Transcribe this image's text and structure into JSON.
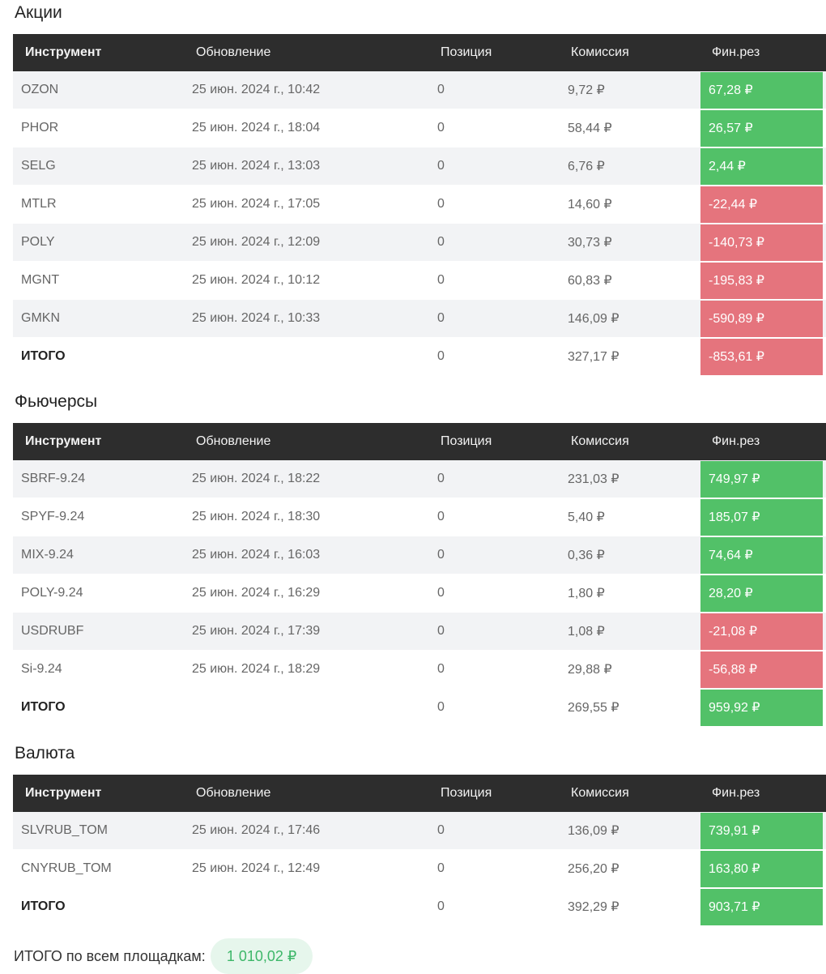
{
  "headers": [
    "Инструмент",
    "Обновление",
    "Позиция",
    "Комиссия",
    "Фин.рез"
  ],
  "colors": {
    "header_bg": "#2d2d2d",
    "profit": "#52c168",
    "loss": "#e5747d",
    "pill_bg": "#e6f6ec",
    "pill_text": "#3db769"
  },
  "sections": [
    {
      "title": "Акции",
      "rows": [
        {
          "instrument": "OZON",
          "updated": "25 июн. 2024 г., 10:42",
          "position": "0",
          "commission": "9,72 ₽",
          "result": "67,28 ₽",
          "sign": "pos"
        },
        {
          "instrument": "PHOR",
          "updated": "25 июн. 2024 г., 18:04",
          "position": "0",
          "commission": "58,44 ₽",
          "result": "26,57 ₽",
          "sign": "pos"
        },
        {
          "instrument": "SELG",
          "updated": "25 июн. 2024 г., 13:03",
          "position": "0",
          "commission": "6,76 ₽",
          "result": "2,44 ₽",
          "sign": "pos"
        },
        {
          "instrument": "MTLR",
          "updated": "25 июн. 2024 г., 17:05",
          "position": "0",
          "commission": "14,60 ₽",
          "result": "-22,44 ₽",
          "sign": "neg"
        },
        {
          "instrument": "POLY",
          "updated": "25 июн. 2024 г., 12:09",
          "position": "0",
          "commission": "30,73 ₽",
          "result": "-140,73 ₽",
          "sign": "neg"
        },
        {
          "instrument": "MGNT",
          "updated": "25 июн. 2024 г., 10:12",
          "position": "0",
          "commission": "60,83 ₽",
          "result": "-195,83 ₽",
          "sign": "neg"
        },
        {
          "instrument": "GMKN",
          "updated": "25 июн. 2024 г., 10:33",
          "position": "0",
          "commission": "146,09 ₽",
          "result": "-590,89 ₽",
          "sign": "neg"
        }
      ],
      "total": {
        "label": "ИТОГО",
        "position": "0",
        "commission": "327,17 ₽",
        "result": "-853,61 ₽",
        "sign": "neg"
      }
    },
    {
      "title": "Фьючерсы",
      "rows": [
        {
          "instrument": "SBRF-9.24",
          "updated": "25 июн. 2024 г., 18:22",
          "position": "0",
          "commission": "231,03 ₽",
          "result": "749,97 ₽",
          "sign": "pos"
        },
        {
          "instrument": "SPYF-9.24",
          "updated": "25 июн. 2024 г., 18:30",
          "position": "0",
          "commission": "5,40 ₽",
          "result": "185,07 ₽",
          "sign": "pos"
        },
        {
          "instrument": "MIX-9.24",
          "updated": "25 июн. 2024 г., 16:03",
          "position": "0",
          "commission": "0,36 ₽",
          "result": "74,64 ₽",
          "sign": "pos"
        },
        {
          "instrument": "POLY-9.24",
          "updated": "25 июн. 2024 г., 16:29",
          "position": "0",
          "commission": "1,80 ₽",
          "result": "28,20 ₽",
          "sign": "pos"
        },
        {
          "instrument": "USDRUBF",
          "updated": "25 июн. 2024 г., 17:39",
          "position": "0",
          "commission": "1,08 ₽",
          "result": "-21,08 ₽",
          "sign": "neg"
        },
        {
          "instrument": "Si-9.24",
          "updated": "25 июн. 2024 г., 18:29",
          "position": "0",
          "commission": "29,88 ₽",
          "result": "-56,88 ₽",
          "sign": "neg"
        }
      ],
      "total": {
        "label": "ИТОГО",
        "position": "0",
        "commission": "269,55 ₽",
        "result": "959,92 ₽",
        "sign": "pos"
      }
    },
    {
      "title": "Валюта",
      "rows": [
        {
          "instrument": "SLVRUB_TOM",
          "updated": "25 июн. 2024 г., 17:46",
          "position": "0",
          "commission": "136,09 ₽",
          "result": "739,91 ₽",
          "sign": "pos"
        },
        {
          "instrument": "CNYRUB_TOM",
          "updated": "25 июн. 2024 г., 12:49",
          "position": "0",
          "commission": "256,20 ₽",
          "result": "163,80 ₽",
          "sign": "pos"
        }
      ],
      "total": {
        "label": "ИТОГО",
        "position": "0",
        "commission": "392,29 ₽",
        "result": "903,71 ₽",
        "sign": "pos"
      }
    }
  ],
  "grand_total": {
    "label": "ИТОГО по всем площадкам:",
    "value": "1 010,02 ₽"
  }
}
